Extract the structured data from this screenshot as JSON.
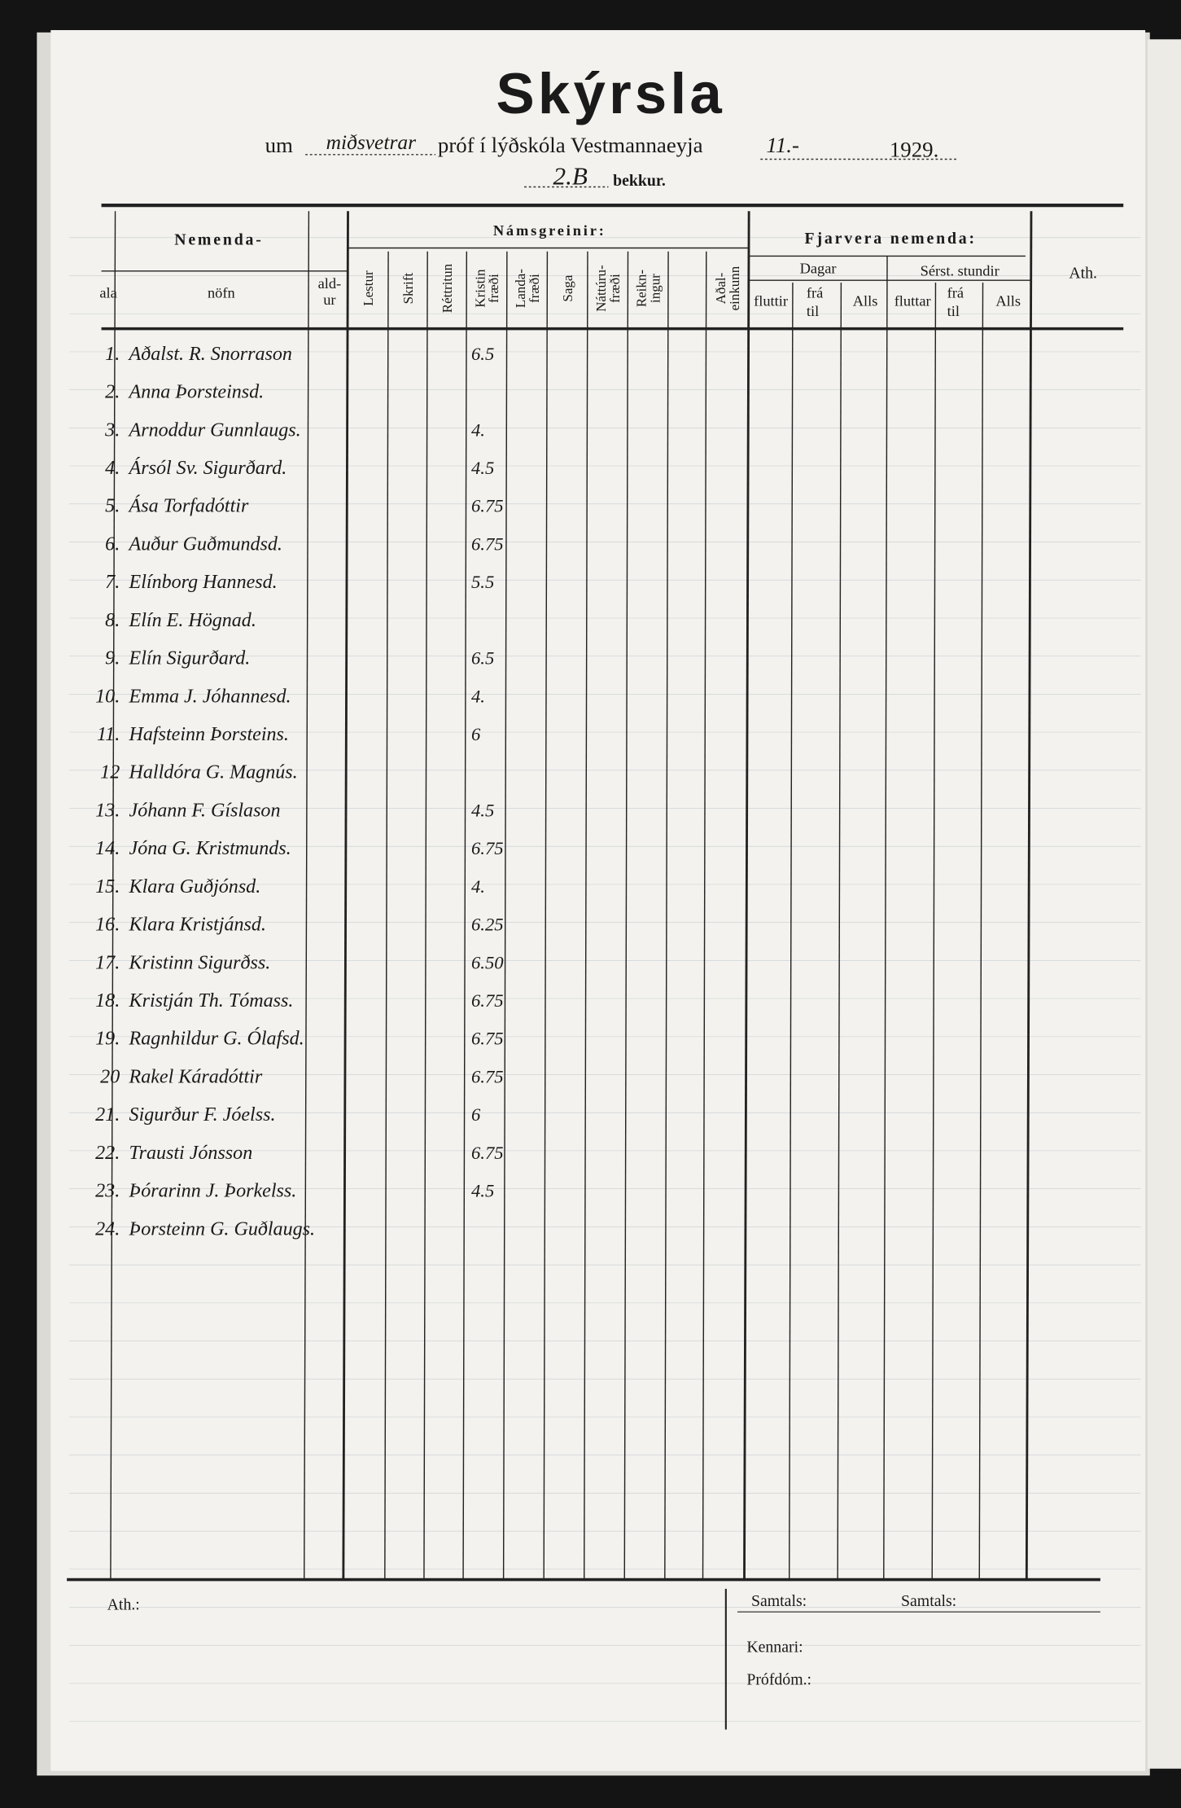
{
  "header": {
    "title": "Skýrsla",
    "prefix": "um",
    "term": "miðsvetrar",
    "exam": "próf í lýðskóla Vestmannaeyja",
    "date": "11.-",
    "year": "1929.",
    "class": "2.B",
    "class_label": "bekkur."
  },
  "table": {
    "group_headers": [
      "Nemenda-",
      "Námsgreinir:",
      "Fjarvera nemenda:"
    ],
    "student_columns": [
      [
        "ala"
      ],
      [
        "nöfn"
      ],
      [
        "ald-",
        "ur"
      ]
    ],
    "subjects": [
      [
        "Lestur"
      ],
      [
        "Skrift"
      ],
      [
        "Réttritun"
      ],
      [
        "Kristin",
        "fræði"
      ],
      [
        "Landa-",
        "fræði"
      ],
      [
        "Saga"
      ],
      [
        "Náttúru-",
        "fræði"
      ],
      [
        "Reikn-",
        "ingur"
      ],
      [
        "Aðal-",
        "einkunn"
      ]
    ],
    "absence_groups": [
      "Dagar",
      "Sérst. stundir"
    ],
    "absence_columns": [
      [
        "fluttir"
      ],
      [
        "frá",
        "til"
      ],
      [
        "Alls"
      ],
      [
        "fluttar"
      ],
      [
        "frá",
        "til"
      ],
      [
        "Alls"
      ]
    ],
    "remarks": "Ath.",
    "rows": [
      {
        "number": "1.",
        "name": "Aðalst. R. Snorrason",
        "grade": "6.5"
      },
      {
        "number": "2.",
        "name": "Anna Þorsteinsd.",
        "grade": null
      },
      {
        "number": "3.",
        "name": "Arnoddur Gunnlaugs.",
        "grade": "4."
      },
      {
        "number": "4.",
        "name": "Ársól Sv. Sigurðard.",
        "grade": "4.5"
      },
      {
        "number": "5.",
        "name": "Ása Torfadóttir",
        "grade": "6.75"
      },
      {
        "number": "6.",
        "name": "Auður Guðmundsd.",
        "grade": "6.75"
      },
      {
        "number": "7.",
        "name": "Elínborg Hannesd.",
        "grade": "5.5"
      },
      {
        "number": "8.",
        "name": "Elín E. Högnad.",
        "grade": null
      },
      {
        "number": "9.",
        "name": "Elín Sigurðard.",
        "grade": "6.5"
      },
      {
        "number": "10.",
        "name": "Emma J. Jóhannesd.",
        "grade": "4."
      },
      {
        "number": "11.",
        "name": "Hafsteinn Þorsteins.",
        "grade": "6"
      },
      {
        "number": "12",
        "name": "Halldóra G. Magnús.",
        "grade": null
      },
      {
        "number": "13.",
        "name": "Jóhann F. Gíslason",
        "grade": "4.5"
      },
      {
        "number": "14.",
        "name": "Jóna G. Kristmunds.",
        "grade": "6.75"
      },
      {
        "number": "15.",
        "name": "Klara Guðjónsd.",
        "grade": "4."
      },
      {
        "number": "16.",
        "name": "Klara Kristjánsd.",
        "grade": "6.25"
      },
      {
        "number": "17.",
        "name": "Kristinn Sigurðss.",
        "grade": "6.50"
      },
      {
        "number": "18.",
        "name": "Kristján Th. Tómass.",
        "grade": "6.75"
      },
      {
        "number": "19.",
        "name": "Ragnhildur G. Ólafsd.",
        "grade": "6.75"
      },
      {
        "number": "20",
        "name": "Rakel Káradóttir",
        "grade": "6.75"
      },
      {
        "number": "21.",
        "name": "Sigurður F. Jóelss.",
        "grade": "6"
      },
      {
        "number": "22.",
        "name": "Trausti Jónsson",
        "grade": "6.75"
      },
      {
        "number": "23.",
        "name": "Þórarinn J. Þorkelss.",
        "grade": "4.5"
      },
      {
        "number": "24.",
        "name": "Þorsteinn G. Guðlaugs.",
        "grade": null
      }
    ]
  },
  "footer": {
    "remarks": "Ath.:",
    "totals": [
      "Samtals:",
      "Samtals:"
    ],
    "teacher": "Kennari:",
    "examiner": "Prófdóm.:"
  }
}
